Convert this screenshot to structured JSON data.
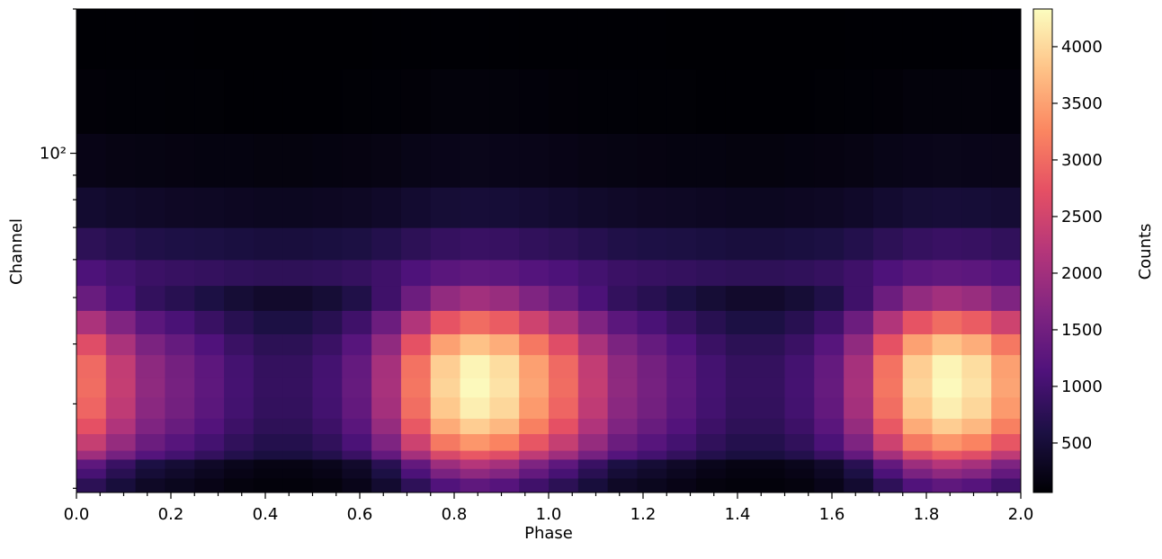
{
  "chart_data": {
    "type": "heatmap",
    "xlabel": "Phase",
    "ylabel": "Channel",
    "colorbar_label": "Counts",
    "yscale": "log",
    "xlim": [
      0,
      2
    ],
    "ylim": [
      19.6,
      200
    ],
    "xticks": [
      {
        "value": 0,
        "label": "0.0"
      },
      0.2,
      0.4,
      0.6,
      0.8,
      {
        "value": 1,
        "label": "1.0"
      },
      1.2,
      1.4,
      1.6,
      1.8,
      {
        "value": 2,
        "label": "2.0"
      }
    ],
    "xminor_ticks": [
      0.05,
      0.1,
      0.15,
      0.25,
      0.3,
      0.35,
      0.45,
      0.5,
      0.55,
      0.65,
      0.7,
      0.75,
      0.85,
      0.9,
      0.95,
      1.05,
      1.1,
      1.15,
      1.25,
      1.3,
      1.35,
      1.45,
      1.5,
      1.55,
      1.65,
      1.7,
      1.75,
      1.85,
      1.9,
      1.95
    ],
    "yticks": [
      {
        "value": 100,
        "label": "10²"
      }
    ],
    "yminor_ticks": [
      20,
      30,
      40,
      50,
      60,
      70,
      80,
      90,
      200
    ],
    "zlim": [
      63,
      4333
    ],
    "zticks": [
      500,
      1000,
      1500,
      2000,
      2500,
      3000,
      3500,
      4000
    ],
    "colors": [
      "#000004",
      "#1c1044",
      "#4f127b",
      "#812581",
      "#b5367a",
      "#e55064",
      "#fb8761",
      "#fec287",
      "#fcfdbf"
    ],
    "xbins": [
      0,
      0.0625,
      0.125,
      0.1875,
      0.25,
      0.3125,
      0.375,
      0.4375,
      0.5,
      0.5625,
      0.625,
      0.6875,
      0.75,
      0.8125,
      0.875,
      0.9375,
      1,
      1.0625,
      1.125,
      1.1875,
      1.25,
      1.3125,
      1.375,
      1.4375,
      1.5,
      1.5625,
      1.625,
      1.6875,
      1.75,
      1.8125,
      1.875,
      1.9375,
      2
    ],
    "ybins": [
      19.6,
      21,
      22,
      23,
      24,
      26,
      28,
      31,
      34,
      38,
      42,
      47,
      53,
      60,
      70,
      85,
      110,
      150,
      200
    ],
    "values": [
      [
        760,
        530,
        350,
        280,
        210,
        150,
        120,
        120,
        150,
        240,
        430,
        790,
        1150,
        1300,
        1200,
        970,
        760,
        530,
        350,
        280,
        210,
        150,
        120,
        120,
        150,
        240,
        430,
        790,
        1150,
        1300,
        1200,
        970
      ],
      [
        1050,
        730,
        490,
        390,
        300,
        210,
        160,
        160,
        210,
        330,
        600,
        1100,
        1590,
        1800,
        1670,
        1340,
        1050,
        730,
        490,
        390,
        300,
        210,
        160,
        160,
        210,
        330,
        600,
        1100,
        1590,
        1800,
        1670,
        1340
      ],
      [
        1290,
        900,
        600,
        480,
        360,
        260,
        200,
        200,
        260,
        400,
        730,
        1340,
        1940,
        2200,
        2040,
        1630,
        1290,
        900,
        600,
        480,
        360,
        260,
        200,
        200,
        260,
        400,
        730,
        1340,
        1940,
        2200,
        2040,
        1630
      ],
      [
        1960,
        1540,
        1180,
        1010,
        840,
        670,
        560,
        560,
        670,
        900,
        1340,
        2020,
        2580,
        2800,
        2660,
        2300,
        1960,
        1540,
        1180,
        1010,
        840,
        670,
        560,
        560,
        670,
        900,
        1340,
        2020,
        2580,
        2800,
        2660,
        2300
      ],
      [
        2380,
        1870,
        1430,
        1220,
        1020,
        820,
        680,
        680,
        820,
        1090,
        1630,
        2450,
        3130,
        3400,
        3230,
        2790,
        2380,
        1870,
        1430,
        1220,
        1020,
        820,
        680,
        680,
        820,
        1090,
        1630,
        2450,
        3130,
        3400,
        3230,
        2790
      ],
      [
        2730,
        2150,
        1640,
        1400,
        1170,
        940,
        780,
        780,
        940,
        1250,
        1870,
        2810,
        3590,
        3900,
        3710,
        3200,
        2730,
        2150,
        1640,
        1400,
        1170,
        940,
        780,
        780,
        940,
        1250,
        1870,
        2810,
        3590,
        3900,
        3710,
        3200
      ],
      [
        2940,
        2310,
        1760,
        1510,
        1260,
        1010,
        840,
        840,
        1010,
        1340,
        2020,
        3020,
        3860,
        4200,
        3990,
        3440,
        2940,
        2310,
        1760,
        1510,
        1260,
        1010,
        840,
        840,
        1010,
        1340,
        2020,
        3020,
        3860,
        4200,
        3990,
        3440
      ],
      [
        3010,
        2370,
        1810,
        1550,
        1290,
        1030,
        860,
        860,
        1030,
        1380,
        2060,
        3100,
        3960,
        4300,
        4090,
        3530,
        3010,
        2370,
        1810,
        1550,
        1290,
        1030,
        860,
        860,
        1030,
        1380,
        2060,
        3100,
        3960,
        4300,
        4090,
        3530
      ],
      [
        2980,
        2340,
        1790,
        1530,
        1280,
        1020,
        850,
        850,
        1020,
        1360,
        2040,
        3060,
        3910,
        4250,
        4040,
        3490,
        2980,
        2340,
        1790,
        1530,
        1280,
        1020,
        850,
        850,
        1020,
        1360,
        2040,
        3060,
        3910,
        4250,
        4040,
        3490
      ],
      [
        2660,
        2090,
        1600,
        1370,
        1140,
        910,
        760,
        760,
        910,
        1220,
        1820,
        2740,
        3500,
        3800,
        3610,
        3120,
        2660,
        2090,
        1600,
        1370,
        1140,
        910,
        760,
        760,
        910,
        1220,
        1820,
        2740,
        3500,
        3800,
        3610,
        3120
      ],
      [
        2100,
        1650,
        1260,
        1080,
        900,
        720,
        600,
        600,
        720,
        960,
        1440,
        2160,
        2760,
        3000,
        2850,
        2460,
        2100,
        1650,
        1260,
        1080,
        900,
        720,
        600,
        600,
        720,
        960,
        1440,
        2160,
        2760,
        3000,
        2850,
        2460
      ],
      [
        1400,
        1100,
        840,
        720,
        600,
        480,
        400,
        400,
        480,
        640,
        960,
        1440,
        1840,
        2000,
        1900,
        1640,
        1400,
        1100,
        840,
        720,
        600,
        480,
        400,
        400,
        480,
        640,
        960,
        1440,
        1840,
        2000,
        1900,
        1640
      ],
      [
        1110,
        1010,
        920,
        880,
        850,
        810,
        780,
        780,
        810,
        860,
        960,
        1120,
        1250,
        1300,
        1270,
        1180,
        1110,
        1010,
        920,
        880,
        850,
        810,
        780,
        780,
        810,
        860,
        960,
        1120,
        1250,
        1300,
        1270,
        1180
      ],
      [
        770,
        700,
        640,
        610,
        590,
        560,
        540,
        540,
        560,
        590,
        670,
        770,
        860,
        900,
        880,
        820,
        770,
        700,
        640,
        610,
        590,
        560,
        540,
        540,
        560,
        590,
        670,
        770,
        860,
        900,
        880,
        820
      ],
      [
        430,
        390,
        360,
        340,
        330,
        310,
        300,
        300,
        310,
        330,
        370,
        430,
        480,
        500,
        490,
        460,
        430,
        390,
        360,
        340,
        330,
        310,
        300,
        300,
        310,
        330,
        370,
        430,
        480,
        500,
        490,
        460
      ],
      [
        210,
        190,
        180,
        170,
        160,
        160,
        150,
        150,
        160,
        170,
        190,
        220,
        240,
        250,
        240,
        230,
        210,
        190,
        180,
        170,
        160,
        160,
        150,
        150,
        160,
        170,
        190,
        220,
        240,
        250,
        240,
        230
      ],
      [
        100,
        90,
        90,
        80,
        80,
        70,
        70,
        70,
        70,
        80,
        90,
        100,
        120,
        120,
        120,
        110,
        100,
        90,
        90,
        80,
        80,
        70,
        70,
        70,
        70,
        80,
        90,
        100,
        120,
        120,
        120,
        110
      ],
      [
        70,
        70,
        70,
        70,
        65,
        65,
        65,
        65,
        65,
        65,
        70,
        70,
        70,
        70,
        70,
        70,
        70,
        70,
        70,
        70,
        65,
        65,
        65,
        65,
        65,
        65,
        70,
        70,
        70,
        70,
        70,
        70
      ]
    ]
  }
}
